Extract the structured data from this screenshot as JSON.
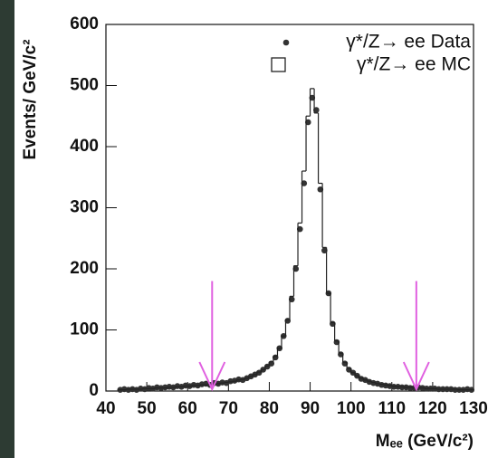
{
  "chart_data": {
    "type": "histogram",
    "xlabel": "Mₑₑ (GeV/c²)",
    "ylabel": "Events/ GeV/c²",
    "bins": [
      43,
      44,
      45,
      46,
      47,
      48,
      49,
      50,
      51,
      52,
      53,
      54,
      55,
      56,
      57,
      58,
      59,
      60,
      61,
      62,
      63,
      64,
      65,
      66,
      67,
      68,
      69,
      70,
      71,
      72,
      73,
      74,
      75,
      76,
      77,
      78,
      79,
      80,
      81,
      82,
      83,
      84,
      85,
      86,
      87,
      88,
      89,
      90,
      91,
      92,
      93,
      94,
      95,
      96,
      97,
      98,
      99,
      100,
      101,
      102,
      103,
      104,
      105,
      106,
      107,
      108,
      109,
      110,
      111,
      112,
      113,
      114,
      115,
      116,
      117,
      118,
      119,
      120,
      121,
      122,
      123,
      124,
      125,
      126,
      127,
      128,
      129,
      130
    ],
    "series": [
      {
        "name": "γ*/Z→ ee Data",
        "style": "points",
        "color": "#333333",
        "values": [
          2,
          3,
          2,
          3,
          2,
          4,
          3,
          5,
          4,
          6,
          5,
          6,
          7,
          6,
          8,
          7,
          9,
          8,
          10,
          9,
          11,
          12,
          10,
          13,
          12,
          14,
          13,
          16,
          17,
          19,
          18,
          21,
          24,
          27,
          30,
          35,
          40,
          45,
          55,
          70,
          90,
          115,
          150,
          200,
          265,
          340,
          440,
          480,
          460,
          330,
          230,
          160,
          110,
          80,
          60,
          45,
          35,
          30,
          25,
          20,
          18,
          15,
          13,
          12,
          10,
          9,
          8,
          7,
          7,
          6,
          6,
          5,
          5,
          6,
          5,
          4,
          4,
          4,
          3,
          3,
          3,
          3,
          2,
          2,
          2,
          3,
          2
        ]
      },
      {
        "name": "γ*/Z→ ee  MC",
        "style": "step",
        "color": "#222222",
        "values": [
          2,
          2,
          3,
          3,
          3,
          3,
          4,
          4,
          4,
          5,
          5,
          5,
          6,
          6,
          7,
          7,
          8,
          8,
          9,
          9,
          10,
          10,
          11,
          11,
          12,
          13,
          14,
          15,
          16,
          18,
          19,
          21,
          24,
          27,
          31,
          35,
          41,
          48,
          57,
          70,
          90,
          117,
          155,
          205,
          275,
          360,
          450,
          495,
          455,
          340,
          235,
          160,
          112,
          82,
          62,
          47,
          37,
          30,
          25,
          21,
          18,
          16,
          14,
          12,
          11,
          10,
          9,
          8,
          7,
          7,
          6,
          6,
          5,
          5,
          5,
          4,
          4,
          4,
          3,
          3,
          3,
          3,
          3,
          2,
          2,
          2,
          2
        ]
      }
    ],
    "arrows": {
      "color": "#e060e0",
      "x": [
        66,
        116
      ],
      "top": 180
    },
    "xlim": [
      40,
      130
    ],
    "xticks": [
      40,
      50,
      60,
      70,
      80,
      90,
      100,
      110,
      120,
      130
    ],
    "ylim": [
      0,
      600
    ],
    "yticks": [
      0,
      100,
      200,
      300,
      400,
      500,
      600
    ]
  }
}
